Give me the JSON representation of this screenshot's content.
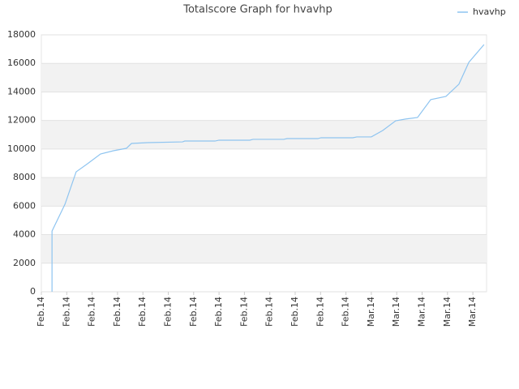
{
  "chart_data": {
    "type": "line",
    "title": "Totalscore Graph for hvavhp",
    "x": [
      0.42,
      0.42,
      0.93,
      1.37,
      1.82,
      2.33,
      2.84,
      3.35,
      3.55,
      4.19,
      5.56,
      5.65,
      6.84,
      7.0,
      8.21,
      8.34,
      9.55,
      9.68,
      10.89,
      11.02,
      12.27,
      12.43,
      13.0,
      13.45,
      13.96,
      14.35,
      14.82,
      15.34,
      15.94,
      16.45,
      16.84,
      17.44
    ],
    "series": [
      {
        "name": "hvavhp",
        "color": "#8ec4f0",
        "values": [
          0,
          4250,
          6130,
          8400,
          8970,
          9650,
          9880,
          10050,
          10390,
          10450,
          10500,
          10560,
          10560,
          10620,
          10620,
          10680,
          10680,
          10730,
          10730,
          10790,
          10790,
          10850,
          10850,
          11300,
          11980,
          12100,
          12210,
          13460,
          13690,
          14540,
          16070,
          17320
        ]
      }
    ],
    "xlim": [
      0,
      17.54
    ],
    "xticks": [
      {
        "value": 0,
        "label": "Feb.14"
      },
      {
        "value": 1,
        "label": "Feb.14"
      },
      {
        "value": 2,
        "label": "Feb.14"
      },
      {
        "value": 3,
        "label": "Feb.14"
      },
      {
        "value": 4,
        "label": "Feb.14"
      },
      {
        "value": 5,
        "label": "Feb.14"
      },
      {
        "value": 6,
        "label": "Feb.14"
      },
      {
        "value": 7,
        "label": "Feb.14"
      },
      {
        "value": 8,
        "label": "Feb.14"
      },
      {
        "value": 9,
        "label": "Feb.14"
      },
      {
        "value": 10,
        "label": "Feb.14"
      },
      {
        "value": 11,
        "label": "Feb.14"
      },
      {
        "value": 12,
        "label": "Feb.14"
      },
      {
        "value": 13,
        "label": "Mar.14"
      },
      {
        "value": 14,
        "label": "Mar.14"
      },
      {
        "value": 15,
        "label": "Mar.14"
      },
      {
        "value": 16,
        "label": "Mar.14"
      },
      {
        "value": 17,
        "label": "Mar.14"
      }
    ],
    "ylim": [
      0,
      18000
    ],
    "yticks": [
      0,
      2000,
      4000,
      6000,
      8000,
      10000,
      12000,
      14000,
      16000,
      18000
    ],
    "grid": true,
    "legend": "top-right"
  }
}
